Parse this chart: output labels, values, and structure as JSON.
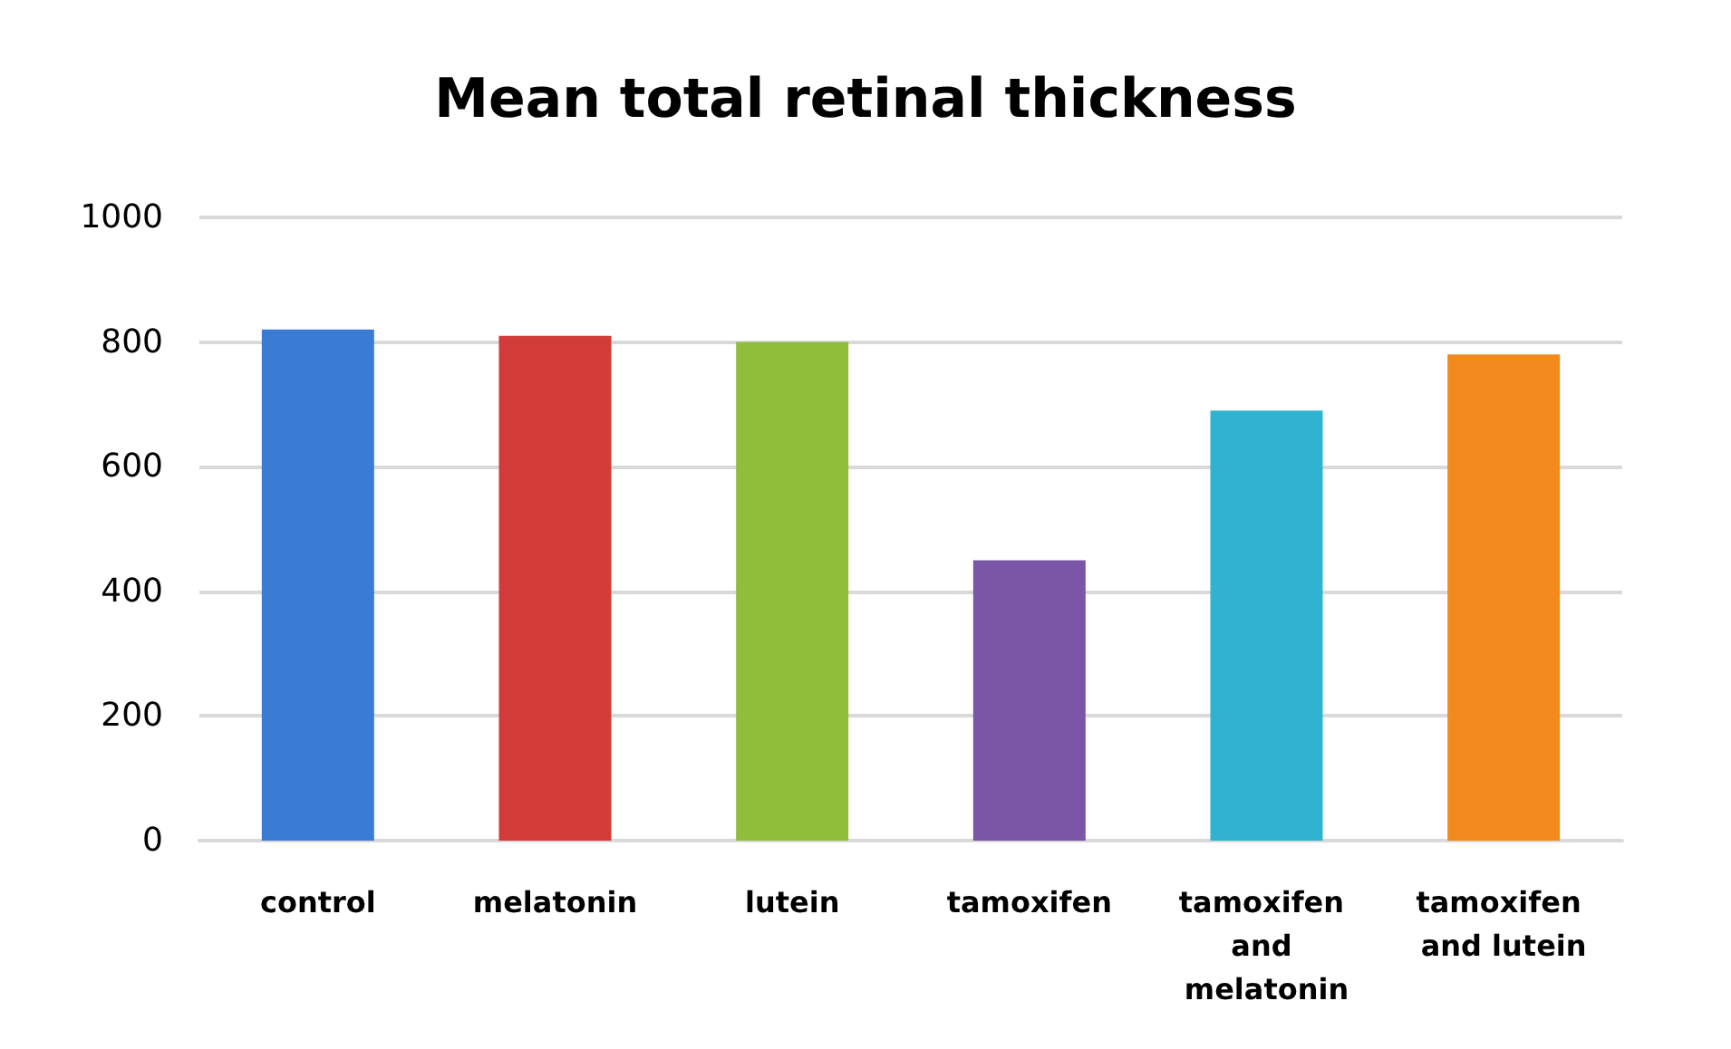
{
  "chart_data": {
    "type": "bar",
    "title": "Mean total retinal thickness",
    "categories": [
      "control",
      "melatonin",
      "lutein",
      "tamoxifen",
      "tamoxifen and melatonin",
      "tamoxifen and lutein"
    ],
    "values": [
      820,
      810,
      800,
      450,
      690,
      780
    ],
    "colors": [
      "#3a7bd5",
      "#d13b38",
      "#8fbf3a",
      "#7a55a8",
      "#2fb3d1",
      "#f28a1e"
    ],
    "ylim": [
      0,
      1000
    ],
    "yticks": [
      0,
      200,
      400,
      600,
      800,
      1000
    ],
    "grid": "y"
  }
}
